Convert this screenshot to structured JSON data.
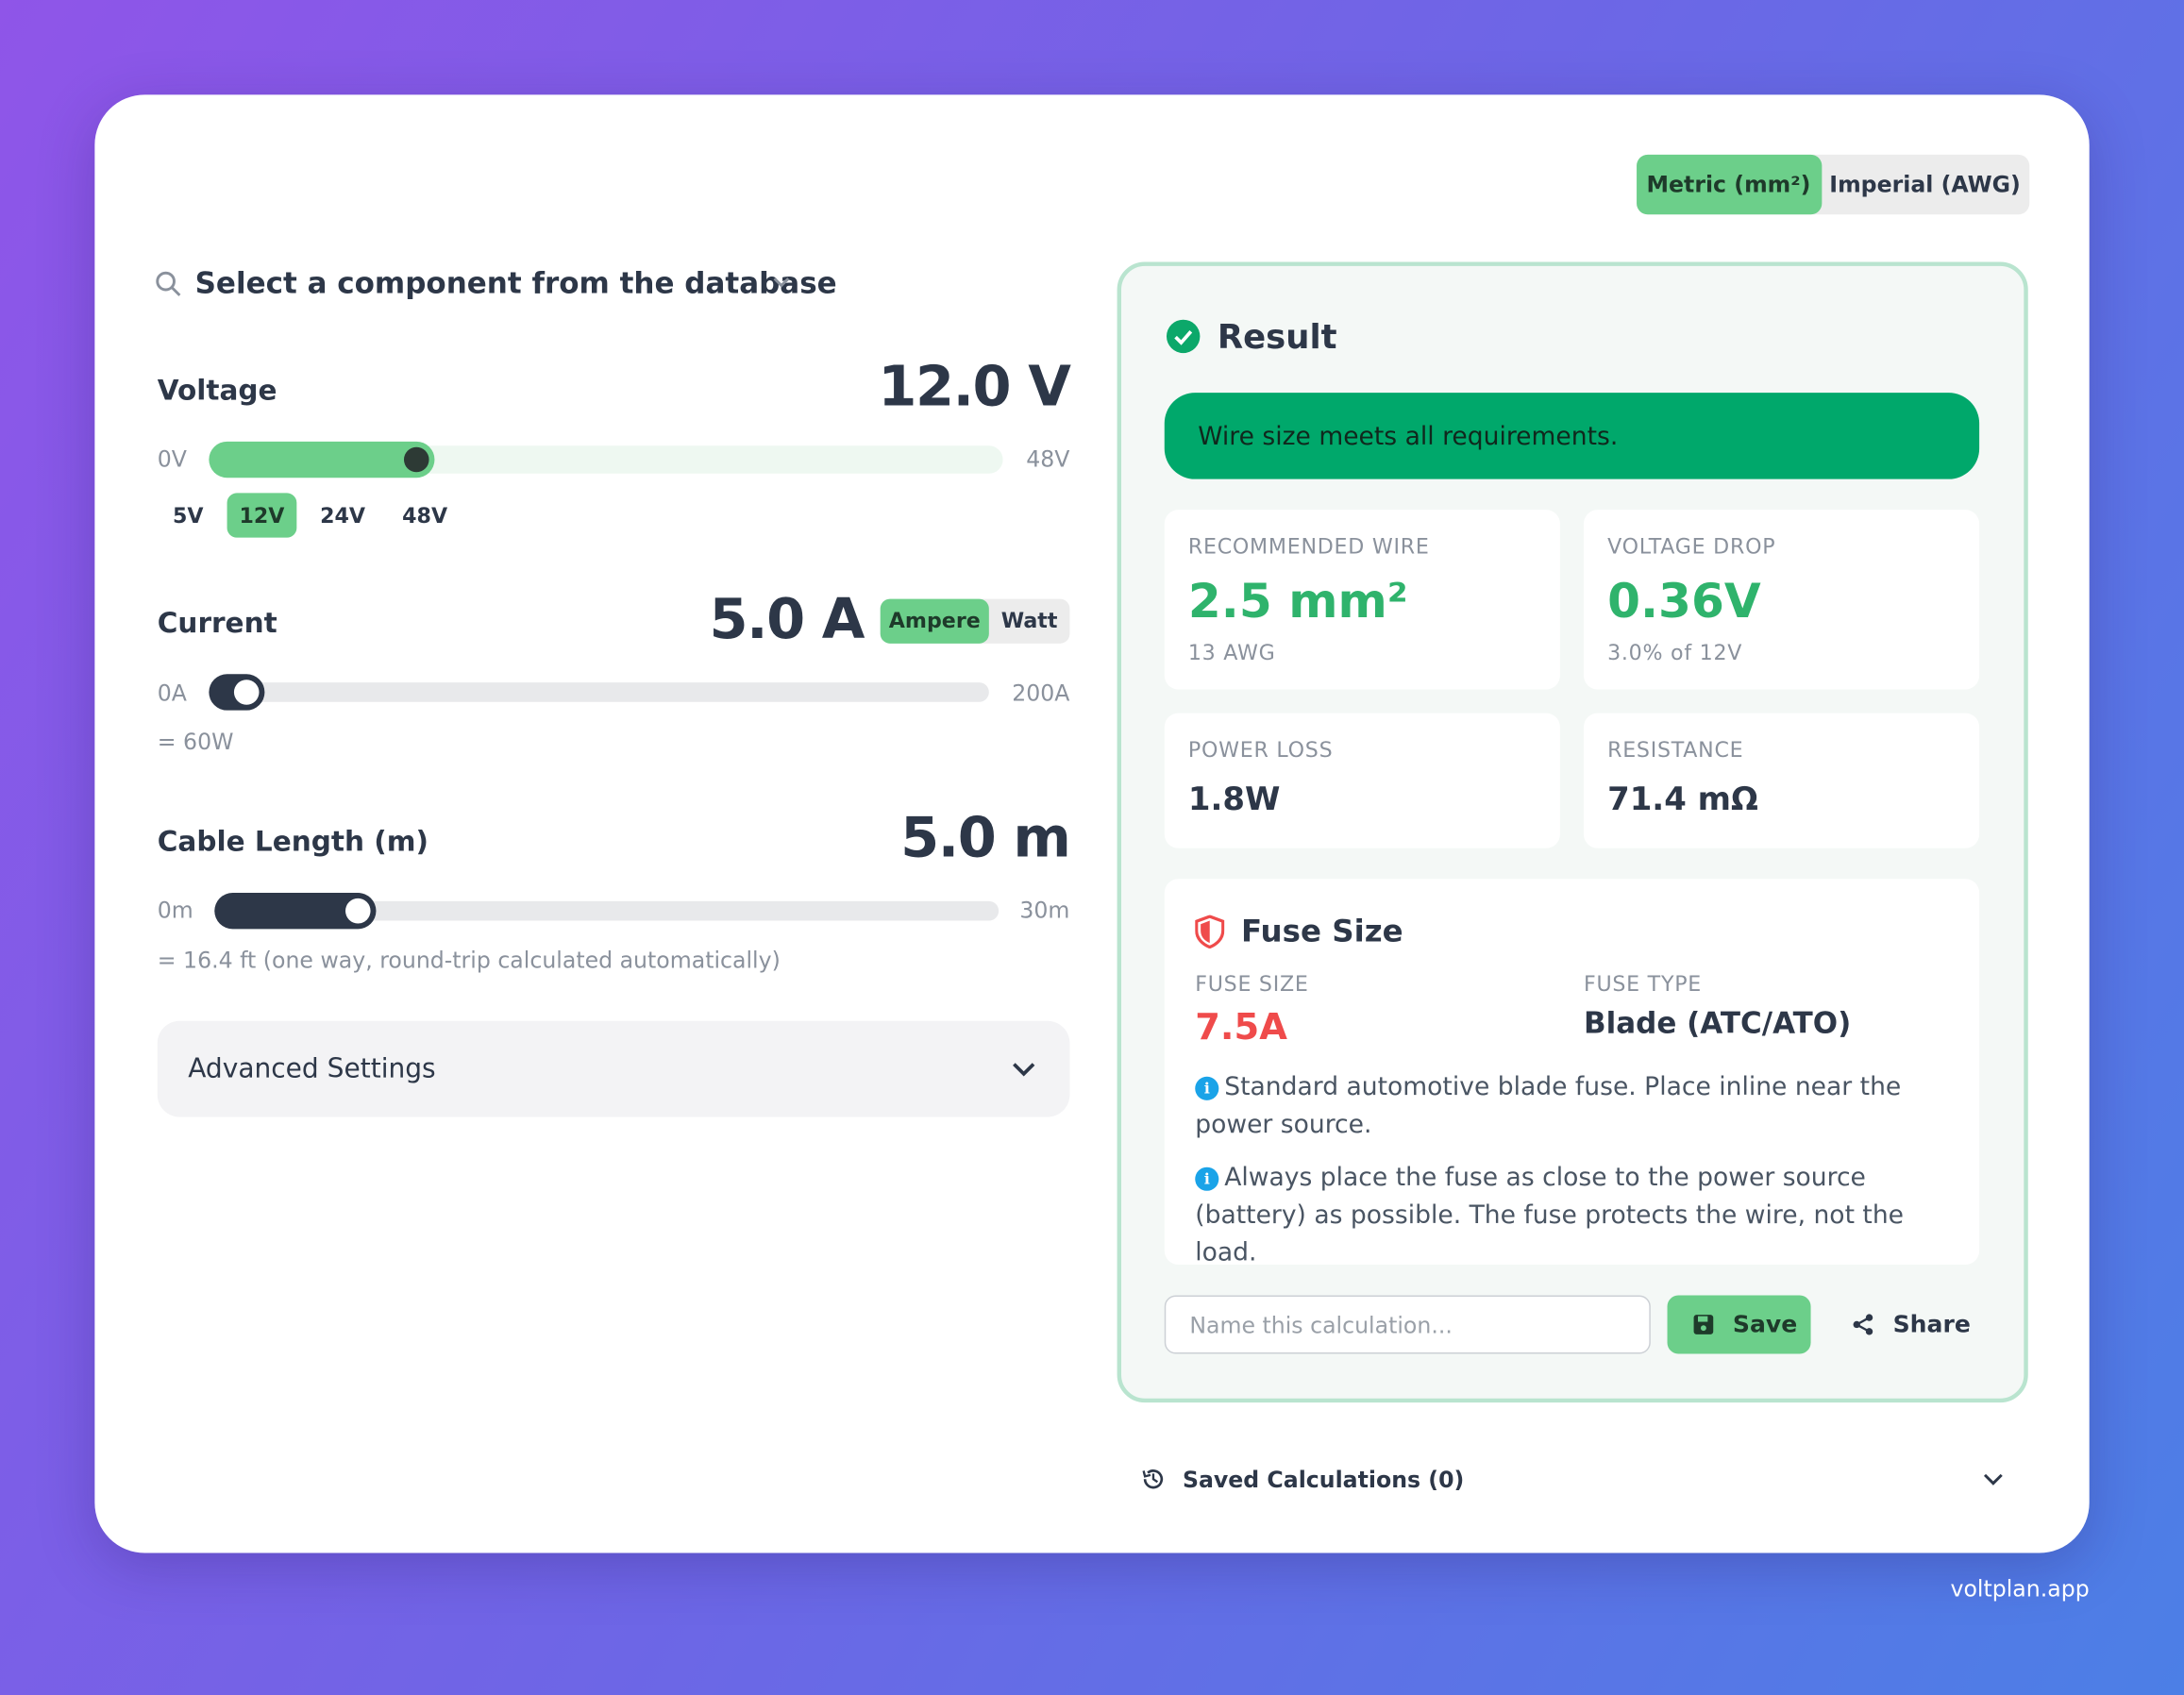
{
  "units": {
    "options": [
      "Metric (mm²)",
      "Imperial (AWG)"
    ]
  },
  "component_search": "Select a component from the database",
  "voltage": {
    "label": "Voltage",
    "value": "12.0 V",
    "min": "0V",
    "max": "48V",
    "presets": [
      "5V",
      "12V",
      "24V",
      "48V"
    ]
  },
  "current": {
    "label": "Current",
    "value": "5.0 A",
    "modes": [
      "Ampere",
      "Watt"
    ],
    "min": "0A",
    "max": "200A",
    "note": "= 60W"
  },
  "cable_length": {
    "label": "Cable Length (m)",
    "value": "5.0 m",
    "min": "0m",
    "max": "30m",
    "note": "= 16.4 ft (one way, round-trip calculated automatically)"
  },
  "advanced_settings": "Advanced Settings",
  "result": {
    "title": "Result",
    "status": "Wire size meets all requirements.",
    "stats": [
      {
        "label": "RECOMMENDED WIRE",
        "value": "2.5 mm²",
        "sub": "13 AWG"
      },
      {
        "label": "VOLTAGE DROP",
        "value": "0.36V",
        "sub": "3.0% of 12V"
      },
      {
        "label": "POWER LOSS",
        "value": "1.8W"
      },
      {
        "label": "RESISTANCE",
        "value": "71.4 mΩ"
      }
    ],
    "fuse": {
      "title": "Fuse Size",
      "size_label": "FUSE SIZE",
      "size": "7.5A",
      "type_label": "FUSE TYPE",
      "type": "Blade (ATC/ATO)",
      "notes": [
        "Standard automotive blade fuse. Place inline near the power source.",
        "Always place the fuse as close to the power source (battery) as possible. The fuse protects the wire, not the load."
      ]
    },
    "name_placeholder": "Name this calculation...",
    "save": "Save",
    "share": "Share"
  },
  "saved": "Saved Calculations (0)",
  "footer": "voltplan.app"
}
